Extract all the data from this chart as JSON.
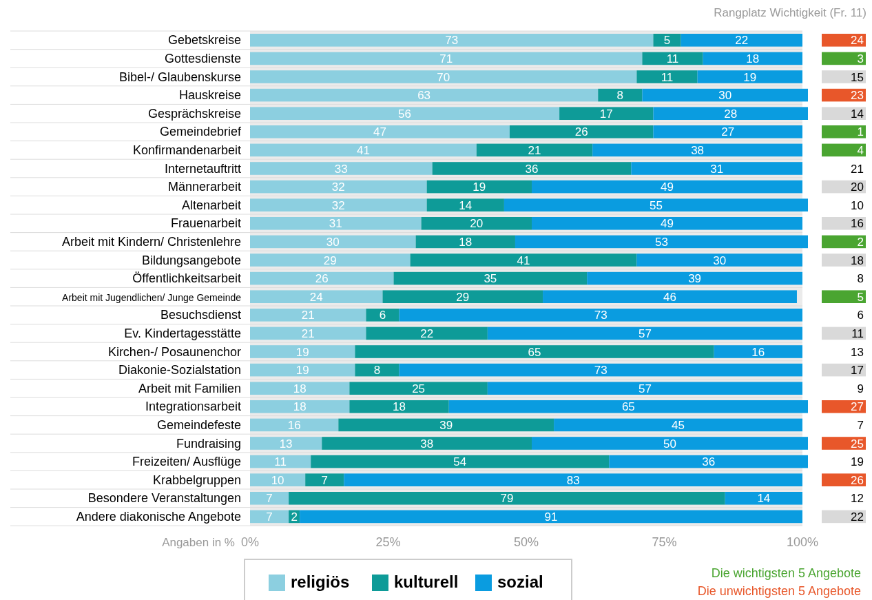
{
  "chart_data": [
    {
      "type": "bar",
      "orientation": "horizontal",
      "stacked": true,
      "data_labels": true,
      "legend": "bottom",
      "xlabel": "Angaben in %",
      "categories": [
        "Gebetskreise",
        "Gottesdienste",
        "Bibel-/ Glaubenskurse",
        "Hauskreise",
        "Gesprächskreise",
        "Gemeindebrief",
        "Konfirmandenarbeit",
        "Internetauftritt",
        "Männerarbeit",
        "Altenarbeit",
        "Frauenarbeit",
        "Arbeit mit Kindern/ Christenlehre",
        "Bildungsangebote",
        "Öffentlichkeitsarbeit",
        "Arbeit mit Jugendlichen/ Junge Gemeinde",
        "Besuchsdienst",
        "Ev. Kindertagesstätte",
        "Kirchen-/ Posaunenchor",
        "Diakonie-Sozialstation",
        "Arbeit mit Familien",
        "Integrationsarbeit",
        "Gemeindefeste",
        "Fundraising",
        "Freizeiten/ Ausflüge",
        "Krabbelgruppen",
        "Besondere Veranstaltungen",
        "Andere diakonische Angebote"
      ],
      "series": [
        {
          "name": "religiös",
          "color": "#8ccfe0",
          "values": [
            73,
            71,
            70,
            63,
            56,
            47,
            41,
            33,
            32,
            32,
            31,
            30,
            29,
            26,
            24,
            21,
            21,
            19,
            19,
            18,
            18,
            16,
            13,
            11,
            10,
            7,
            7
          ]
        },
        {
          "name": "kulturell",
          "color": "#0e9b98",
          "values": [
            5,
            11,
            11,
            8,
            17,
            26,
            21,
            36,
            19,
            14,
            20,
            18,
            41,
            35,
            29,
            6,
            22,
            65,
            8,
            25,
            18,
            39,
            38,
            54,
            7,
            79,
            2
          ]
        },
        {
          "name": "sozial",
          "color": "#0a9ce0",
          "values": [
            22,
            18,
            19,
            30,
            28,
            27,
            38,
            31,
            49,
            55,
            49,
            53,
            30,
            39,
            46,
            73,
            57,
            16,
            73,
            57,
            65,
            45,
            50,
            36,
            83,
            14,
            91
          ]
        }
      ],
      "xlim": [
        0,
        101
      ],
      "xticks": [
        {
          "value": 0,
          "label": "0%"
        },
        {
          "value": 25,
          "label": "25%"
        },
        {
          "value": 50,
          "label": "50%"
        },
        {
          "value": 75,
          "label": "75%"
        },
        {
          "value": 100,
          "label": "100%"
        }
      ]
    },
    {
      "type": "other",
      "title": "Rangplatz Wichtigkeit (Fr. 11)",
      "data_labels": true,
      "values": [
        24,
        3,
        15,
        23,
        14,
        1,
        4,
        21,
        20,
        10,
        16,
        2,
        18,
        8,
        5,
        6,
        11,
        13,
        17,
        9,
        27,
        7,
        25,
        19,
        26,
        12,
        22
      ],
      "colors": [
        "#e8572a",
        "#4aa531",
        "#d9d9d9",
        "#e8572a",
        "#d9d9d9",
        "#4aa531",
        "#4aa531",
        "#ffffff",
        "#d9d9d9",
        "#ffffff",
        "#d9d9d9",
        "#4aa531",
        "#d9d9d9",
        "#ffffff",
        "#4aa531",
        "#ffffff",
        "#d9d9d9",
        "#ffffff",
        "#d9d9d9",
        "#ffffff",
        "#e8572a",
        "#ffffff",
        "#e8572a",
        "#ffffff",
        "#e8572a",
        "#ffffff",
        "#d9d9d9"
      ],
      "annotations": [
        "Die wichtigsten 5 Angebote",
        "Die unwichtigsten 5 Angebote"
      ]
    }
  ]
}
